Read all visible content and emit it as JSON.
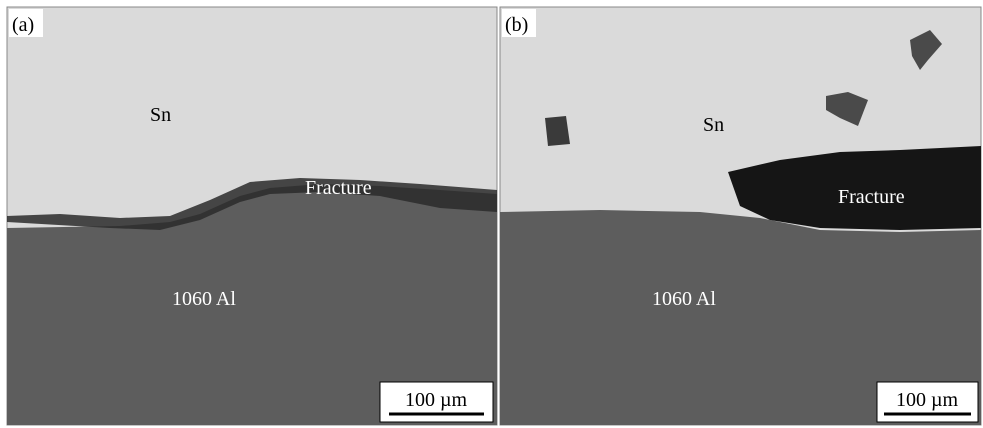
{
  "panels": [
    {
      "label": "(a)",
      "sn_label": "Sn",
      "fracture_label": "Fracture",
      "substrate_label": "1060 Al",
      "scale_bar": "100 µm"
    },
    {
      "label": "(b)",
      "sn_label": "Sn",
      "fracture_label": "Fracture",
      "substrate_label": "1060 Al",
      "scale_bar": "100 µm"
    }
  ]
}
